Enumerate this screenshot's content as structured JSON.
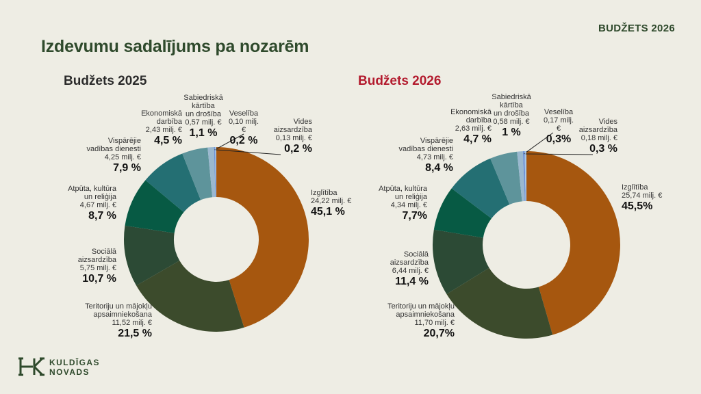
{
  "corner_label": "BUDŽETS 2026",
  "page_title": "Izdevumu sadalījums pa nozarēm",
  "logo_text": "KULDĪGAS\nNOVADS",
  "colors": {
    "izglitiba": "#a6570f",
    "teritoriju": "#3c4b2c",
    "sociala": "#2c4a35",
    "atputa": "#075a44",
    "visparejie": "#246f73",
    "ekonomiska": "#5e949b",
    "sabiedriska": "#9ab8cf",
    "veseliba": "#6f93d6",
    "vides": "#a7c7ea"
  },
  "chart_data": [
    {
      "type": "pie",
      "title": "Budžets 2025",
      "slices": [
        {
          "key": "izglitiba",
          "name": "Izglītība",
          "amount": "24,22 milj. €",
          "pct_label": "45,1 %",
          "value": 45.1
        },
        {
          "key": "teritoriju",
          "name": "Teritoriju un mājokļu\napsaimniekošana",
          "amount": "11,52 milj. €",
          "pct_label": "21,5 %",
          "value": 21.5
        },
        {
          "key": "sociala",
          "name": "Sociālā\naizsardzība",
          "amount": "5,75 milj. €",
          "pct_label": "10,7 %",
          "value": 10.7
        },
        {
          "key": "atputa",
          "name": "Atpūta, kultūra\nun reliģija",
          "amount": "4,67 milj. €",
          "pct_label": "8,7 %",
          "value": 8.7
        },
        {
          "key": "visparejie",
          "name": "Vispārējie\nvadības dienesti",
          "amount": "4,25 milj. €",
          "pct_label": "7,9 %",
          "value": 7.9
        },
        {
          "key": "ekonomiska",
          "name": "Ekonomiskā\ndarbība",
          "amount": "2,43 milj. €",
          "pct_label": "4,5 %",
          "value": 4.5
        },
        {
          "key": "sabiedriska",
          "name": "Sabiedriskā\nkārtība\nun drošība",
          "amount": "0,57 milj. €",
          "pct_label": "1,1 %",
          "value": 1.1
        },
        {
          "key": "veseliba",
          "name": "Veselība",
          "amount": "0,10 milj. €",
          "pct_label": "0,2 %",
          "value": 0.2
        },
        {
          "key": "vides",
          "name": "Vides\naizsardzība",
          "amount": "0,13 milj. €",
          "pct_label": "0,2 %",
          "value": 0.2
        }
      ]
    },
    {
      "type": "pie",
      "title": "Budžets 2026",
      "slices": [
        {
          "key": "izglitiba",
          "name": "Izglītība",
          "amount": "25,74 milj. €",
          "pct_label": "45,5%",
          "value": 45.5
        },
        {
          "key": "teritoriju",
          "name": "Teritoriju un mājokļu\napsaimniekošana",
          "amount": "11,70 milj. €",
          "pct_label": "20,7%",
          "value": 20.7
        },
        {
          "key": "sociala",
          "name": "Sociālā\naizsardzība",
          "amount": "6,44 milj. €",
          "pct_label": "11,4 %",
          "value": 11.4
        },
        {
          "key": "atputa",
          "name": "Atpūta, kultūra\nun reliģija",
          "amount": "4,34 milj. €",
          "pct_label": "7,7%",
          "value": 7.7
        },
        {
          "key": "visparejie",
          "name": "Vispārējie\nvadības dienesti",
          "amount": "4,73 milj. €",
          "pct_label": "8,4 %",
          "value": 8.4
        },
        {
          "key": "ekonomiska",
          "name": "Ekonomiskā\ndarbība",
          "amount": "2,63 milj. €",
          "pct_label": "4,7 %",
          "value": 4.7
        },
        {
          "key": "sabiedriska",
          "name": "Sabiedriskā\nkārtība\nun drošība",
          "amount": "0,58 milj. €",
          "pct_label": "1 %",
          "value": 1.0
        },
        {
          "key": "veseliba",
          "name": "Veselība",
          "amount": "0,17 milj. €",
          "pct_label": "0,3%",
          "value": 0.3
        },
        {
          "key": "vides",
          "name": "Vides\naizsardzība",
          "amount": "0,18 milj. €",
          "pct_label": "0,3 %",
          "value": 0.3
        }
      ]
    }
  ]
}
